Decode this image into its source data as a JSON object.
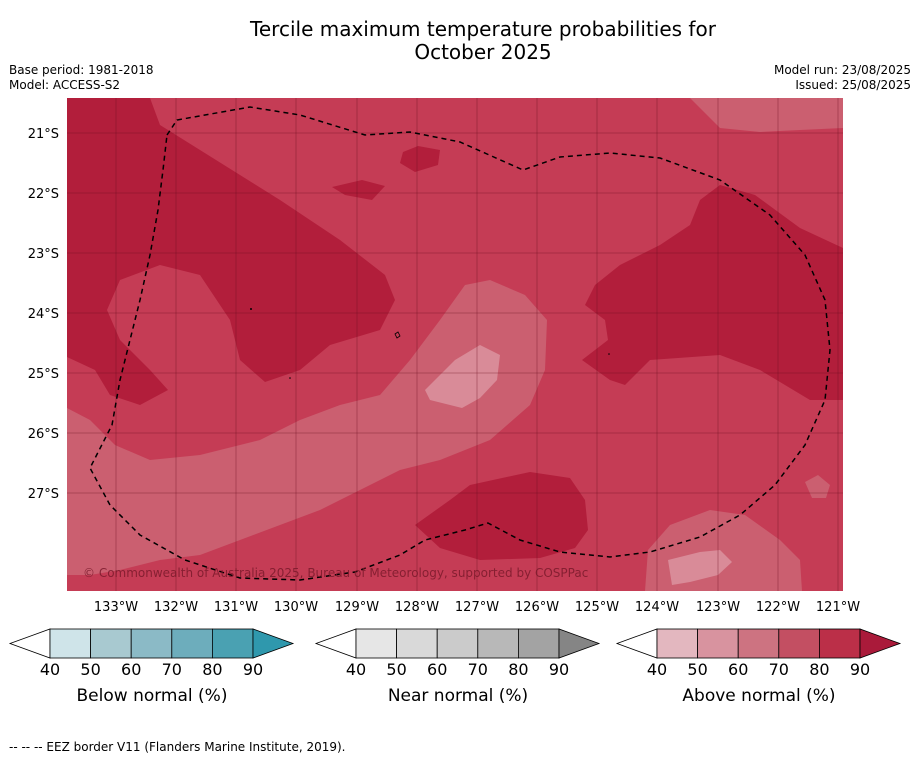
{
  "title_line1": "Tercile maximum temperature probabilities for",
  "title_line2": "October 2025",
  "base_period": "Base period: 1981-2018",
  "model": "Model: ACCESS-S2",
  "model_run": "Model run: 23/08/2025",
  "issued": "Issued: 25/08/2025",
  "copyright": "© Commonwealth of Australia 2025, Bureau of Meteorology, supported by COSPPac",
  "lat_labels": [
    "21°S",
    "22°S",
    "23°S",
    "24°S",
    "25°S",
    "26°S",
    "27°S"
  ],
  "lon_labels": [
    "133°W",
    "132°W",
    "131°W",
    "130°W",
    "129°W",
    "128°W",
    "127°W",
    "126°W",
    "125°W",
    "124°W",
    "123°W",
    "122°W",
    "121°W"
  ],
  "colorbars": [
    {
      "label": "Below normal (%)",
      "ticks": [
        "40",
        "50",
        "60",
        "70",
        "80",
        "90"
      ],
      "colors": [
        "#cfe4e9",
        "#a8c9d0",
        "#8bbac6",
        "#6dadbc",
        "#4aa1b2"
      ],
      "extend_color": "#2f98ad"
    },
    {
      "label": "Near normal (%)",
      "ticks": [
        "40",
        "50",
        "60",
        "70",
        "80",
        "90"
      ],
      "colors": [
        "#e6e6e6",
        "#d9d9d9",
        "#cbcbcb",
        "#b8b8b8",
        "#a3a3a3"
      ],
      "extend_color": "#858585"
    },
    {
      "label": "Above normal (%)",
      "ticks": [
        "40",
        "50",
        "60",
        "70",
        "80",
        "90"
      ],
      "colors": [
        "#e3b7bf",
        "#d8939f",
        "#cd7381",
        "#c34f62",
        "#bb2f48"
      ],
      "extend_color": "#aa1a3a"
    }
  ],
  "footnote": "-- -- -- EEZ border V11 (Flanders Marine Institute, 2019).",
  "map_colors": {
    "class_70_80": "#c53c55",
    "class_80_90": "#b21e3b",
    "class_60_70": "#cb5f70",
    "class_50_60": "#d98b98"
  }
}
